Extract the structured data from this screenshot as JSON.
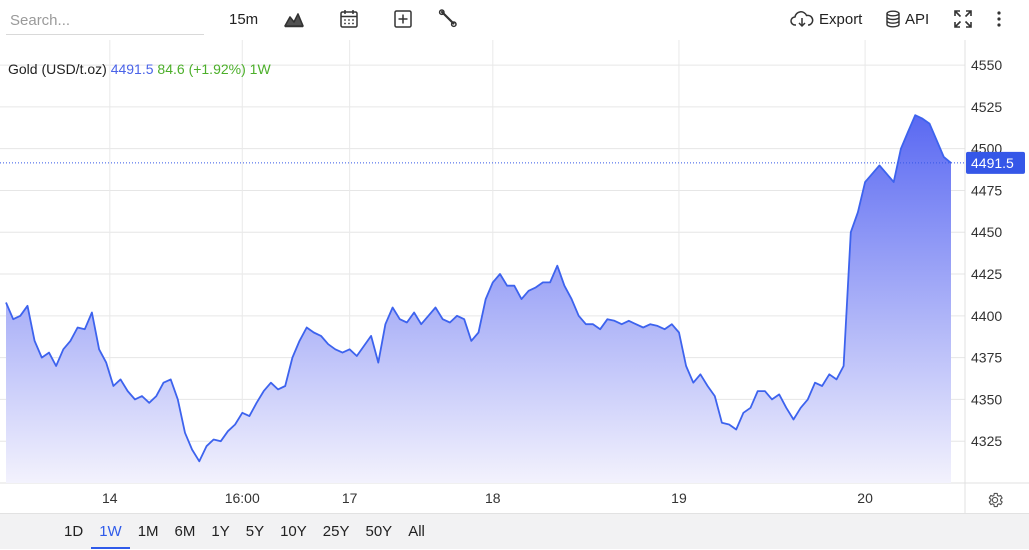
{
  "toolbar": {
    "search_placeholder": "Search...",
    "interval": "15m",
    "export_label": "Export",
    "api_label": "API",
    "icons": [
      "area-chart-icon",
      "calendar-icon",
      "add-indicator-icon",
      "wrench-icon",
      "cloud-download-icon",
      "database-icon",
      "fullscreen-icon",
      "more-vertical-icon"
    ]
  },
  "legend": {
    "name": "Gold (USD/t.oz)",
    "price": "4491.5",
    "change": "84.6",
    "percent": "(+1.92%)",
    "period": "1W"
  },
  "ranges": [
    "1D",
    "1W",
    "1M",
    "6M",
    "1Y",
    "5Y",
    "10Y",
    "25Y",
    "50Y",
    "All"
  ],
  "active_range": "1W",
  "colors": {
    "line": "#3d63ee",
    "area_top": "#5d6cf2",
    "area_bottom": "#f4f3fd",
    "price_label_bg": "#3557e8",
    "up": "#4caf2a",
    "active_tab": "#2f5bea"
  },
  "chart_data": {
    "type": "area",
    "title": "Gold (USD/t.oz)",
    "xlabel": "",
    "ylabel": "",
    "ylim": [
      4300,
      4565
    ],
    "y_ticks": [
      4325,
      4350,
      4375,
      4400,
      4425,
      4450,
      4475,
      4500,
      4525,
      4550
    ],
    "x_ticks": [
      {
        "label": "14",
        "t": 2.9
      },
      {
        "label": "16:00",
        "t": 6.6
      },
      {
        "label": "17",
        "t": 9.6
      },
      {
        "label": "18",
        "t": 13.6
      },
      {
        "label": "19",
        "t": 18.8
      },
      {
        "label": "20",
        "t": 24.0
      }
    ],
    "grid": true,
    "last_price": 4491.5,
    "series": [
      {
        "name": "Gold (USD/t.oz)",
        "points": [
          [
            0.0,
            4408
          ],
          [
            0.2,
            4398
          ],
          [
            0.4,
            4400
          ],
          [
            0.6,
            4406
          ],
          [
            0.8,
            4385
          ],
          [
            1.0,
            4375
          ],
          [
            1.2,
            4378
          ],
          [
            1.4,
            4370
          ],
          [
            1.6,
            4380
          ],
          [
            1.8,
            4385
          ],
          [
            2.0,
            4393
          ],
          [
            2.2,
            4392
          ],
          [
            2.4,
            4402
          ],
          [
            2.6,
            4380
          ],
          [
            2.8,
            4372
          ],
          [
            3.0,
            4358
          ],
          [
            3.2,
            4362
          ],
          [
            3.4,
            4355
          ],
          [
            3.6,
            4350
          ],
          [
            3.8,
            4352
          ],
          [
            4.0,
            4348
          ],
          [
            4.2,
            4352
          ],
          [
            4.4,
            4360
          ],
          [
            4.6,
            4362
          ],
          [
            4.8,
            4350
          ],
          [
            5.0,
            4330
          ],
          [
            5.2,
            4320
          ],
          [
            5.4,
            4313
          ],
          [
            5.6,
            4322
          ],
          [
            5.8,
            4326
          ],
          [
            6.0,
            4325
          ],
          [
            6.2,
            4331
          ],
          [
            6.4,
            4335
          ],
          [
            6.6,
            4342
          ],
          [
            6.8,
            4340
          ],
          [
            7.0,
            4348
          ],
          [
            7.2,
            4355
          ],
          [
            7.4,
            4360
          ],
          [
            7.6,
            4356
          ],
          [
            7.8,
            4358
          ],
          [
            8.0,
            4375
          ],
          [
            8.2,
            4385
          ],
          [
            8.4,
            4393
          ],
          [
            8.6,
            4390
          ],
          [
            8.8,
            4388
          ],
          [
            9.0,
            4383
          ],
          [
            9.2,
            4380
          ],
          [
            9.4,
            4378
          ],
          [
            9.6,
            4380
          ],
          [
            9.8,
            4376
          ],
          [
            10.0,
            4382
          ],
          [
            10.2,
            4388
          ],
          [
            10.4,
            4372
          ],
          [
            10.6,
            4395
          ],
          [
            10.8,
            4405
          ],
          [
            11.0,
            4398
          ],
          [
            11.2,
            4396
          ],
          [
            11.4,
            4402
          ],
          [
            11.6,
            4395
          ],
          [
            11.8,
            4400
          ],
          [
            12.0,
            4405
          ],
          [
            12.2,
            4398
          ],
          [
            12.4,
            4396
          ],
          [
            12.6,
            4400
          ],
          [
            12.8,
            4398
          ],
          [
            13.0,
            4385
          ],
          [
            13.2,
            4390
          ],
          [
            13.4,
            4410
          ],
          [
            13.6,
            4420
          ],
          [
            13.8,
            4425
          ],
          [
            14.0,
            4418
          ],
          [
            14.2,
            4418
          ],
          [
            14.4,
            4410
          ],
          [
            14.6,
            4415
          ],
          [
            14.8,
            4417
          ],
          [
            15.0,
            4420
          ],
          [
            15.2,
            4420
          ],
          [
            15.4,
            4430
          ],
          [
            15.6,
            4418
          ],
          [
            15.8,
            4410
          ],
          [
            16.0,
            4400
          ],
          [
            16.2,
            4395
          ],
          [
            16.4,
            4395
          ],
          [
            16.6,
            4392
          ],
          [
            16.8,
            4398
          ],
          [
            17.0,
            4397
          ],
          [
            17.2,
            4395
          ],
          [
            17.4,
            4397
          ],
          [
            17.6,
            4395
          ],
          [
            17.8,
            4393
          ],
          [
            18.0,
            4395
          ],
          [
            18.2,
            4394
          ],
          [
            18.4,
            4392
          ],
          [
            18.6,
            4395
          ],
          [
            18.8,
            4390
          ],
          [
            19.0,
            4370
          ],
          [
            19.2,
            4360
          ],
          [
            19.4,
            4365
          ],
          [
            19.6,
            4358
          ],
          [
            19.8,
            4352
          ],
          [
            20.0,
            4336
          ],
          [
            20.2,
            4335
          ],
          [
            20.4,
            4332
          ],
          [
            20.6,
            4342
          ],
          [
            20.8,
            4345
          ],
          [
            21.0,
            4355
          ],
          [
            21.2,
            4355
          ],
          [
            21.4,
            4350
          ],
          [
            21.6,
            4353
          ],
          [
            21.8,
            4345
          ],
          [
            22.0,
            4338
          ],
          [
            22.2,
            4345
          ],
          [
            22.4,
            4350
          ],
          [
            22.6,
            4360
          ],
          [
            22.8,
            4358
          ],
          [
            23.0,
            4365
          ],
          [
            23.2,
            4362
          ],
          [
            23.4,
            4370
          ],
          [
            23.6,
            4450
          ],
          [
            23.8,
            4462
          ],
          [
            24.0,
            4480
          ],
          [
            24.2,
            4485
          ],
          [
            24.4,
            4490
          ],
          [
            24.6,
            4485
          ],
          [
            24.8,
            4480
          ],
          [
            25.0,
            4500
          ],
          [
            25.2,
            4510
          ],
          [
            25.4,
            4520
          ],
          [
            25.6,
            4518
          ],
          [
            25.8,
            4515
          ],
          [
            26.0,
            4505
          ],
          [
            26.2,
            4495
          ],
          [
            26.4,
            4491.5
          ]
        ]
      }
    ]
  }
}
